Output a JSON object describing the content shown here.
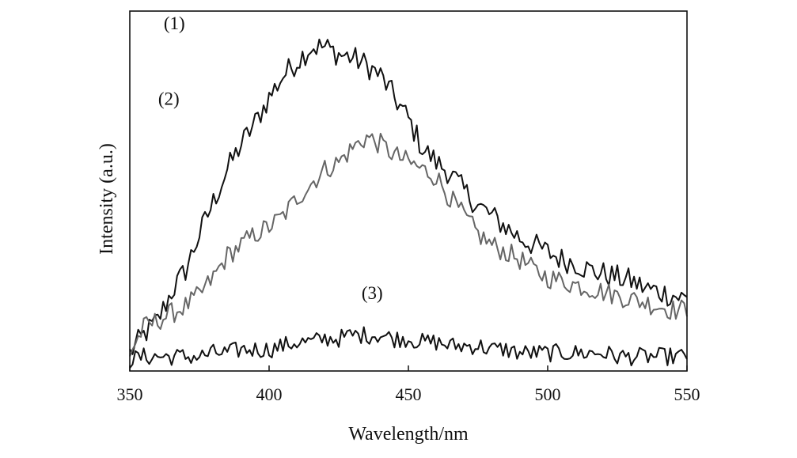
{
  "chart_data": {
    "type": "line",
    "xlabel": "Wavelength/nm",
    "ylabel": "Intensity (a.u.)",
    "xlim": [
      350,
      550
    ],
    "ylim": [
      0,
      1
    ],
    "xticks": [
      350,
      400,
      450,
      500,
      550
    ],
    "y_tick_labels": false,
    "grid": false,
    "legend": "none",
    "series": [
      {
        "name": "(1)",
        "color": "#111111",
        "label_at": [
          366,
          0.95
        ],
        "x": [
          350,
          355,
          360,
          365,
          370,
          375,
          380,
          385,
          390,
          395,
          400,
          405,
          410,
          415,
          420,
          425,
          430,
          435,
          440,
          445,
          450,
          455,
          460,
          465,
          470,
          475,
          480,
          485,
          490,
          495,
          500,
          505,
          510,
          515,
          520,
          525,
          530,
          535,
          540,
          545,
          550
        ],
        "values": [
          0.05,
          0.1,
          0.14,
          0.22,
          0.28,
          0.38,
          0.47,
          0.56,
          0.63,
          0.69,
          0.76,
          0.82,
          0.86,
          0.9,
          0.9,
          0.88,
          0.87,
          0.85,
          0.82,
          0.76,
          0.7,
          0.62,
          0.58,
          0.55,
          0.5,
          0.46,
          0.43,
          0.4,
          0.37,
          0.35,
          0.33,
          0.31,
          0.3,
          0.28,
          0.27,
          0.26,
          0.25,
          0.23,
          0.22,
          0.21,
          0.2
        ]
      },
      {
        "name": "(2)",
        "color": "#666666",
        "label_at": [
          364,
          0.74
        ],
        "x": [
          350,
          355,
          360,
          365,
          370,
          375,
          380,
          385,
          390,
          395,
          400,
          405,
          410,
          415,
          420,
          425,
          430,
          435,
          440,
          445,
          450,
          455,
          460,
          465,
          470,
          475,
          480,
          485,
          490,
          495,
          500,
          505,
          510,
          515,
          520,
          525,
          530,
          535,
          540,
          545,
          550
        ],
        "values": [
          0.05,
          0.12,
          0.14,
          0.16,
          0.18,
          0.21,
          0.26,
          0.32,
          0.35,
          0.38,
          0.4,
          0.43,
          0.48,
          0.52,
          0.56,
          0.58,
          0.62,
          0.65,
          0.63,
          0.6,
          0.58,
          0.56,
          0.54,
          0.48,
          0.43,
          0.38,
          0.35,
          0.33,
          0.31,
          0.28,
          0.26,
          0.25,
          0.24,
          0.23,
          0.22,
          0.21,
          0.2,
          0.19,
          0.18,
          0.17,
          0.17
        ]
      },
      {
        "name": "(3)",
        "color": "#111111",
        "label_at": [
          437,
          0.2
        ],
        "x": [
          350,
          355,
          360,
          365,
          370,
          375,
          380,
          385,
          390,
          395,
          400,
          405,
          410,
          415,
          420,
          425,
          430,
          435,
          440,
          445,
          450,
          455,
          460,
          465,
          470,
          475,
          480,
          485,
          490,
          495,
          500,
          505,
          510,
          515,
          520,
          525,
          530,
          535,
          540,
          545,
          550
        ],
        "values": [
          0.03,
          0.04,
          0.04,
          0.04,
          0.04,
          0.04,
          0.05,
          0.05,
          0.06,
          0.06,
          0.06,
          0.07,
          0.08,
          0.08,
          0.09,
          0.09,
          0.1,
          0.1,
          0.1,
          0.09,
          0.09,
          0.08,
          0.08,
          0.07,
          0.07,
          0.07,
          0.06,
          0.06,
          0.05,
          0.05,
          0.05,
          0.05,
          0.05,
          0.05,
          0.05,
          0.04,
          0.04,
          0.04,
          0.04,
          0.04,
          0.04
        ]
      }
    ]
  }
}
